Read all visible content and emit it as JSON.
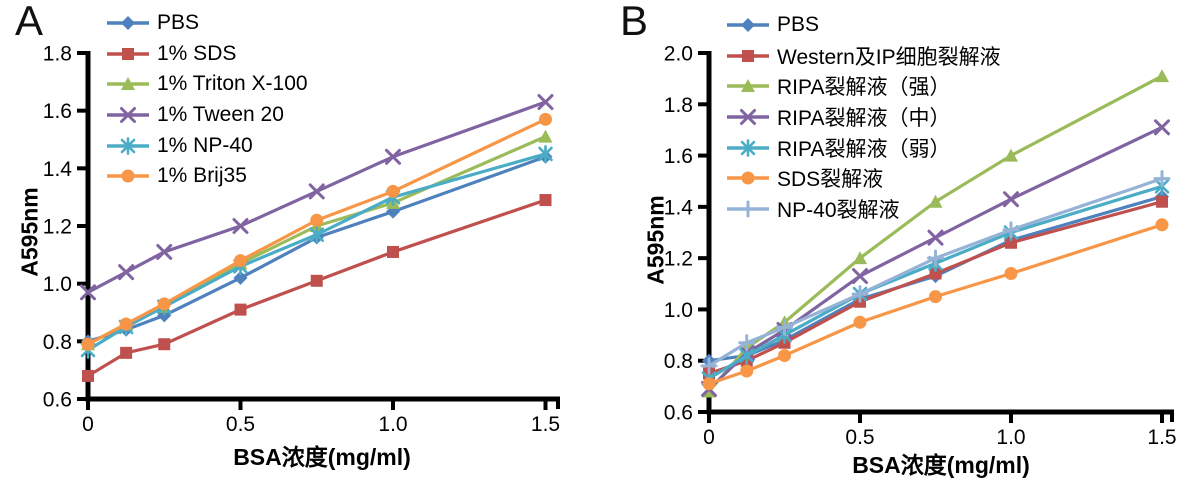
{
  "figure_title": "",
  "chart_data": [
    {
      "type": "line",
      "panel_label": "A",
      "xlabel": "BSA浓度(mg/ml)",
      "ylabel": "A595nm",
      "grid": false,
      "legend_position": "top-left-inside",
      "xlim": [
        0,
        1.5
      ],
      "ylim": [
        0.6,
        1.8
      ],
      "x": [
        0,
        0.125,
        0.25,
        0.5,
        0.75,
        1.0,
        1.5
      ],
      "x_ticks": {
        "values": [
          0,
          0.5,
          1.0,
          1.5
        ],
        "labels": [
          "0",
          "0.5",
          "1.0",
          "1.5"
        ]
      },
      "y_ticks": {
        "values": [
          0.6,
          0.8,
          1.0,
          1.2,
          1.4,
          1.6,
          1.8
        ],
        "labels": [
          "0.6",
          "0.8",
          "1.0",
          "1.2",
          "1.4",
          "1.6",
          "1.8"
        ]
      },
      "series": [
        {
          "name": "PBS",
          "color": "#4F81BD",
          "marker": "diamond",
          "values": [
            0.8,
            0.84,
            0.89,
            1.02,
            1.16,
            1.25,
            1.44
          ]
        },
        {
          "name": "1% SDS",
          "color": "#C0504D",
          "marker": "square",
          "values": [
            0.68,
            0.76,
            0.79,
            0.91,
            1.01,
            1.11,
            1.29
          ]
        },
        {
          "name": "1% Triton X-100",
          "color": "#9BBB59",
          "marker": "triangle",
          "values": [
            0.79,
            0.86,
            0.92,
            1.07,
            1.2,
            1.28,
            1.51
          ]
        },
        {
          "name": "1% Tween 20",
          "color": "#8064A2",
          "marker": "x",
          "values": [
            0.97,
            1.04,
            1.11,
            1.2,
            1.32,
            1.44,
            1.63
          ]
        },
        {
          "name": "1% NP-40",
          "color": "#4BACC6",
          "marker": "asterisk",
          "values": [
            0.77,
            0.85,
            0.92,
            1.06,
            1.17,
            1.3,
            1.45
          ]
        },
        {
          "name": "1% Brij35",
          "color": "#F79646",
          "marker": "circle",
          "values": [
            0.79,
            0.86,
            0.93,
            1.08,
            1.22,
            1.32,
            1.57
          ]
        }
      ]
    },
    {
      "type": "line",
      "panel_label": "B",
      "xlabel": "BSA浓度(mg/ml)",
      "ylabel": "A595nm",
      "grid": false,
      "legend_position": "top-left-inside",
      "xlim": [
        0,
        1.5
      ],
      "ylim": [
        0.6,
        2.0
      ],
      "x": [
        0,
        0.125,
        0.25,
        0.5,
        0.75,
        1.0,
        1.5
      ],
      "x_ticks": {
        "values": [
          0,
          0.5,
          1.0,
          1.5
        ],
        "labels": [
          "0",
          "0.5",
          "1.0",
          "1.5"
        ]
      },
      "y_ticks": {
        "values": [
          0.6,
          0.8,
          1.0,
          1.2,
          1.4,
          1.6,
          1.8,
          2.0
        ],
        "labels": [
          "0.6",
          "0.8",
          "1.0",
          "1.2",
          "1.4",
          "1.6",
          "1.8",
          "2.0"
        ]
      },
      "series": [
        {
          "name": "PBS",
          "color": "#4F81BD",
          "marker": "diamond",
          "values": [
            0.8,
            0.82,
            0.88,
            1.04,
            1.13,
            1.27,
            1.44
          ]
        },
        {
          "name": "Western及IP细胞裂解液",
          "color": "#C0504D",
          "marker": "square",
          "values": [
            0.75,
            0.8,
            0.87,
            1.03,
            1.14,
            1.26,
            1.42
          ]
        },
        {
          "name": "RIPA裂解液（强）",
          "color": "#9BBB59",
          "marker": "triangle",
          "values": [
            0.68,
            0.85,
            0.95,
            1.2,
            1.42,
            1.6,
            1.91
          ]
        },
        {
          "name": "RIPA裂解液（中）",
          "color": "#8064A2",
          "marker": "x",
          "values": [
            0.69,
            0.83,
            0.92,
            1.13,
            1.28,
            1.43,
            1.71
          ]
        },
        {
          "name": "RIPA裂解液（弱）",
          "color": "#4BACC6",
          "marker": "asterisk",
          "values": [
            0.73,
            0.82,
            0.9,
            1.06,
            1.18,
            1.3,
            1.48
          ]
        },
        {
          "name": "SDS裂解液",
          "color": "#F79646",
          "marker": "circle",
          "values": [
            0.71,
            0.76,
            0.82,
            0.95,
            1.05,
            1.14,
            1.33
          ]
        },
        {
          "name": "NP-40裂解液",
          "color": "#95B3D7",
          "marker": "plus",
          "values": [
            0.78,
            0.87,
            0.93,
            1.06,
            1.2,
            1.31,
            1.51
          ]
        }
      ]
    }
  ],
  "style": {
    "axis_color": "#000000",
    "background": "#ffffff"
  }
}
